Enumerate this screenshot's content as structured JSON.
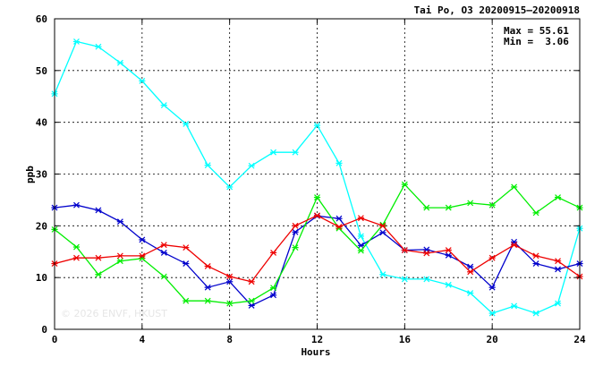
{
  "chart_data": {
    "type": "line",
    "title": "Tai Po, O3 20200915—20200918",
    "xlabel": "Hours",
    "ylabel": "ppb",
    "xlim": [
      0,
      24
    ],
    "ylim": [
      0,
      60
    ],
    "xticks": [
      "0",
      "4",
      "8",
      "12",
      "16",
      "20",
      "24"
    ],
    "yticks": [
      "0",
      "10",
      "20",
      "30",
      "40",
      "50",
      "60"
    ],
    "grid": true,
    "stats": {
      "max": "Max = 55.61",
      "min": "Min =  3.06"
    },
    "watermark": "© 2026  ENVF, HKUST",
    "x": [
      0,
      1,
      2,
      3,
      4,
      5,
      6,
      7,
      8,
      9,
      10,
      11,
      12,
      13,
      14,
      15,
      16,
      17,
      18,
      19,
      20,
      21,
      22,
      23,
      24
    ],
    "series": [
      {
        "color": "#00ffff",
        "values": [
          45.5,
          55.6,
          54.6,
          51.5,
          48.0,
          43.3,
          39.7,
          31.7,
          27.5,
          31.6,
          34.2,
          34.2,
          39.4,
          32.1,
          18.0,
          10.6,
          9.7,
          9.7,
          8.6,
          7.0,
          3.1,
          4.5,
          3.1,
          5.0,
          19.5
        ]
      },
      {
        "color": "#0000cc",
        "values": [
          23.5,
          24.0,
          23.0,
          20.8,
          17.3,
          14.8,
          12.7,
          8.1,
          9.2,
          4.6,
          6.6,
          18.8,
          21.9,
          21.4,
          16.2,
          18.7,
          15.3,
          15.4,
          14.3,
          12.1,
          8.1,
          16.9,
          12.7,
          11.6,
          12.7
        ]
      },
      {
        "color": "#00ee00",
        "values": [
          19.3,
          15.9,
          10.6,
          13.2,
          13.7,
          10.2,
          5.5,
          5.5,
          5.0,
          5.5,
          8.0,
          15.8,
          25.5,
          19.5,
          15.2,
          20.2,
          28.0,
          23.5,
          23.5,
          24.4,
          24.0,
          27.5,
          22.5,
          25.5,
          23.5
        ]
      },
      {
        "color": "#ee0000",
        "values": [
          12.7,
          13.8,
          13.8,
          14.2,
          14.2,
          16.3,
          15.8,
          12.2,
          10.2,
          9.2,
          14.8,
          20.0,
          22.0,
          19.8,
          21.5,
          20.0,
          15.3,
          14.7,
          15.3,
          11.1,
          13.8,
          16.3,
          14.2,
          13.2,
          10.2
        ]
      }
    ]
  }
}
